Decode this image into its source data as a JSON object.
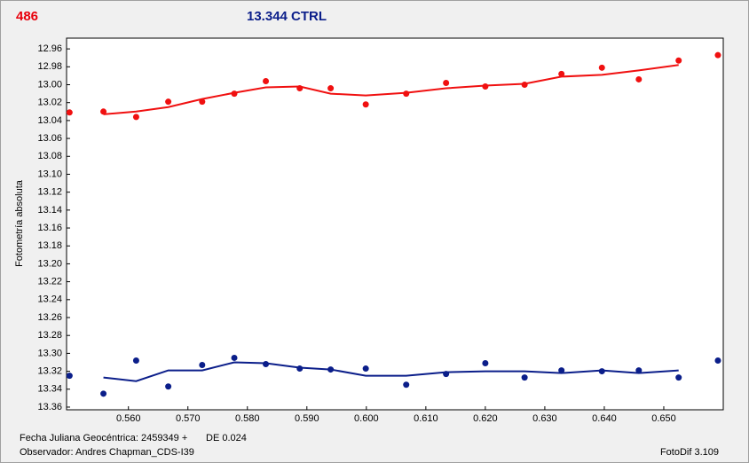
{
  "chart_data": {
    "type": "scatter",
    "label": "486",
    "title": "13.344 CTRL",
    "y_label": "Fotometría absoluta",
    "label_color": "#e8000b",
    "title_color": "#0b1e8a",
    "xlim": [
      0.5496,
      0.66
    ],
    "ylim": [
      13.363,
      12.948
    ],
    "grid": false,
    "xticks": [
      {
        "value": 0.56,
        "label": "0.560"
      },
      {
        "value": 0.57,
        "label": "0.570"
      },
      {
        "value": 0.58,
        "label": "0.580"
      },
      {
        "value": 0.59,
        "label": "0.590"
      },
      {
        "value": 0.6,
        "label": "0.600"
      },
      {
        "value": 0.61,
        "label": "0.610"
      },
      {
        "value": 0.62,
        "label": "0.620"
      },
      {
        "value": 0.63,
        "label": "0.630"
      },
      {
        "value": 0.64,
        "label": "0.640"
      },
      {
        "value": 0.65,
        "label": "0.650"
      }
    ],
    "yticks": [
      {
        "value": 12.96,
        "label": "12.96"
      },
      {
        "value": 12.98,
        "label": "12.98"
      },
      {
        "value": 13,
        "label": "13.00"
      },
      {
        "value": 13.02,
        "label": "13.02"
      },
      {
        "value": 13.04,
        "label": "13.04"
      },
      {
        "value": 13.06,
        "label": "13.06"
      },
      {
        "value": 13.08,
        "label": "13.08"
      },
      {
        "value": 13.1,
        "label": "13.10"
      },
      {
        "value": 13.12,
        "label": "13.12"
      },
      {
        "value": 13.14,
        "label": "13.14"
      },
      {
        "value": 13.16,
        "label": "13.16"
      },
      {
        "value": 13.18,
        "label": "13.18"
      },
      {
        "value": 13.2,
        "label": "13.20"
      },
      {
        "value": 13.22,
        "label": "13.22"
      },
      {
        "value": 13.24,
        "label": "13.24"
      },
      {
        "value": 13.26,
        "label": "13.26"
      },
      {
        "value": 13.28,
        "label": "13.28"
      },
      {
        "value": 13.3,
        "label": "13.30"
      },
      {
        "value": 13.32,
        "label": "13.32"
      },
      {
        "value": 13.34,
        "label": "13.34"
      },
      {
        "value": 13.36,
        "label": "13.36"
      }
    ],
    "series": [
      {
        "style": "markers",
        "color": "#f01010",
        "x": [
          0.5501,
          0.5558,
          0.5613,
          0.5667,
          0.5724,
          0.5778,
          0.5831,
          0.5888,
          0.594,
          0.5999,
          0.6067,
          0.6134,
          0.62,
          0.6266,
          0.6328,
          0.6396,
          0.6458,
          0.6525,
          0.6591
        ],
        "values": [
          13.031,
          13.03,
          13.036,
          13.019,
          13.019,
          13.01,
          12.996,
          13.004,
          13.004,
          13.022,
          13.01,
          12.998,
          13.002,
          13.0,
          12.988,
          12.981,
          12.994,
          12.973,
          12.967
        ]
      },
      {
        "style": "line",
        "color": "#f01010",
        "x": [
          0.5558,
          0.5613,
          0.5667,
          0.5724,
          0.5778,
          0.5831,
          0.5888,
          0.594,
          0.5999,
          0.6067,
          0.6134,
          0.62,
          0.6266,
          0.6328,
          0.6396,
          0.6458,
          0.6525
        ],
        "values": [
          13.033,
          13.03,
          13.025,
          13.016,
          13.009,
          13.003,
          13.002,
          13.01,
          13.012,
          13.009,
          13.004,
          13.001,
          12.999,
          12.991,
          12.989,
          12.984,
          12.978
        ]
      },
      {
        "style": "markers",
        "color": "#0b1e8a",
        "x": [
          0.5501,
          0.5558,
          0.5613,
          0.5667,
          0.5724,
          0.5778,
          0.5831,
          0.5888,
          0.594,
          0.5999,
          0.6067,
          0.6134,
          0.62,
          0.6266,
          0.6328,
          0.6396,
          0.6458,
          0.6525,
          0.6591
        ],
        "values": [
          13.325,
          13.345,
          13.308,
          13.337,
          13.313,
          13.305,
          13.312,
          13.317,
          13.318,
          13.317,
          13.335,
          13.323,
          13.311,
          13.327,
          13.319,
          13.32,
          13.319,
          13.327,
          13.308
        ]
      },
      {
        "style": "line",
        "color": "#0b1e8a",
        "x": [
          0.5558,
          0.5613,
          0.5667,
          0.5724,
          0.5778,
          0.5831,
          0.5888,
          0.594,
          0.5999,
          0.6067,
          0.6134,
          0.62,
          0.6266,
          0.6328,
          0.6396,
          0.6458,
          0.6525
        ],
        "values": [
          13.327,
          13.331,
          13.319,
          13.319,
          13.31,
          13.311,
          13.316,
          13.318,
          13.325,
          13.325,
          13.321,
          13.32,
          13.32,
          13.322,
          13.319,
          13.322,
          13.319
        ]
      }
    ]
  },
  "footer": {
    "date": "Fecha Juliana Geocéntrica: 2459349 +",
    "de": "DE 0.024",
    "observer": "Observador: Andres Chapman_CDS-I39",
    "app": "FotoDif 3.109"
  }
}
